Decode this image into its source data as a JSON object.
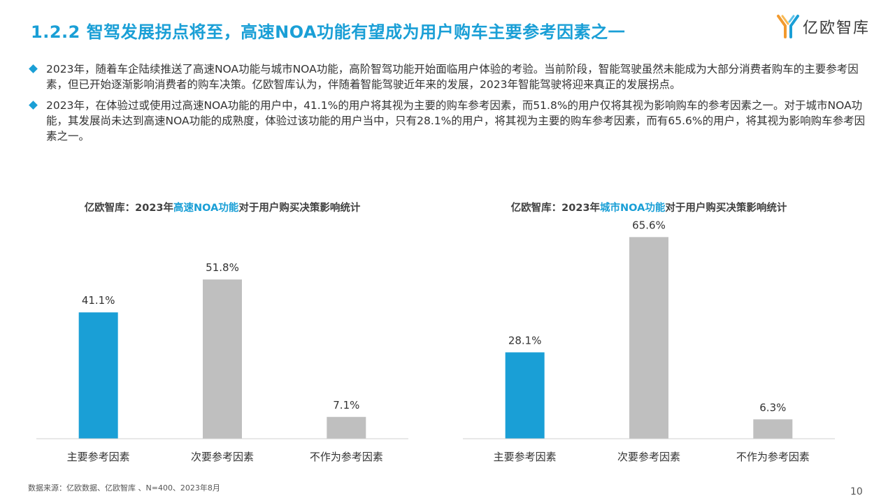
{
  "header": {
    "title": "1.2.2 智驾发展拐点将至，高速NOA功能有望成为用户购车主要参考因素之一",
    "logo_text": "亿欧智库"
  },
  "bullets": [
    "2023年，随着车企陆续推送了高速NOA功能与城市NOA功能，高阶智驾功能开始面临用户体验的考验。当前阶段，智能驾驶虽然未能成为大部分消费者购车的主要参考因素，但已开始逐渐影响消费者的购车决策。亿欧智库认为，伴随着智能驾驶近年来的发展，2023年智能驾驶将迎来真正的发展拐点。",
    "2023年，在体验过或使用过高速NOA功能的用户中，41.1%的用户将其视为主要的购车参考因素，而51.8%的用户仅将其视为影响购车的参考因素之一。对于城市NOA功能，其发展尚未达到高速NOA功能的成熟度，体验过该功能的用户当中，只有28.1%的用户，将其视为主要的购车参考因素，而有65.6%的用户，将其视为影响购车参考因素之一。"
  ],
  "colors": {
    "accent": "#1a9fd6",
    "bar_gray": "#bfbfbf",
    "text": "#333333"
  },
  "chart_data": [
    {
      "type": "bar",
      "title_prefix": "亿欧智库：2023年",
      "title_highlight": "高速NOA功能",
      "title_suffix": "对于用户购买决策影响统计",
      "categories": [
        "主要参考因素",
        "次要参考因素",
        "不作为参考因素"
      ],
      "values": [
        41.1,
        51.8,
        7.1
      ],
      "value_labels": [
        "41.1%",
        "51.8%",
        "7.1%"
      ],
      "bar_colors": [
        "#1a9fd6",
        "#bfbfbf",
        "#bfbfbf"
      ],
      "ylim": [
        0,
        70
      ]
    },
    {
      "type": "bar",
      "title_prefix": "亿欧智库：2023年",
      "title_highlight": "城市NOA功能",
      "title_suffix": "对于用户购买决策影响统计",
      "categories": [
        "主要参考因素",
        "次要参考因素",
        "不作为参考因素"
      ],
      "values": [
        28.1,
        65.6,
        6.3
      ],
      "value_labels": [
        "28.1%",
        "65.6%",
        "6.3%"
      ],
      "bar_colors": [
        "#1a9fd6",
        "#bfbfbf",
        "#bfbfbf"
      ],
      "ylim": [
        0,
        70
      ]
    }
  ],
  "footer": {
    "source": "数据来源：亿欧数据、亿欧智库 、N=400、2023年8月",
    "page_number": "10"
  }
}
